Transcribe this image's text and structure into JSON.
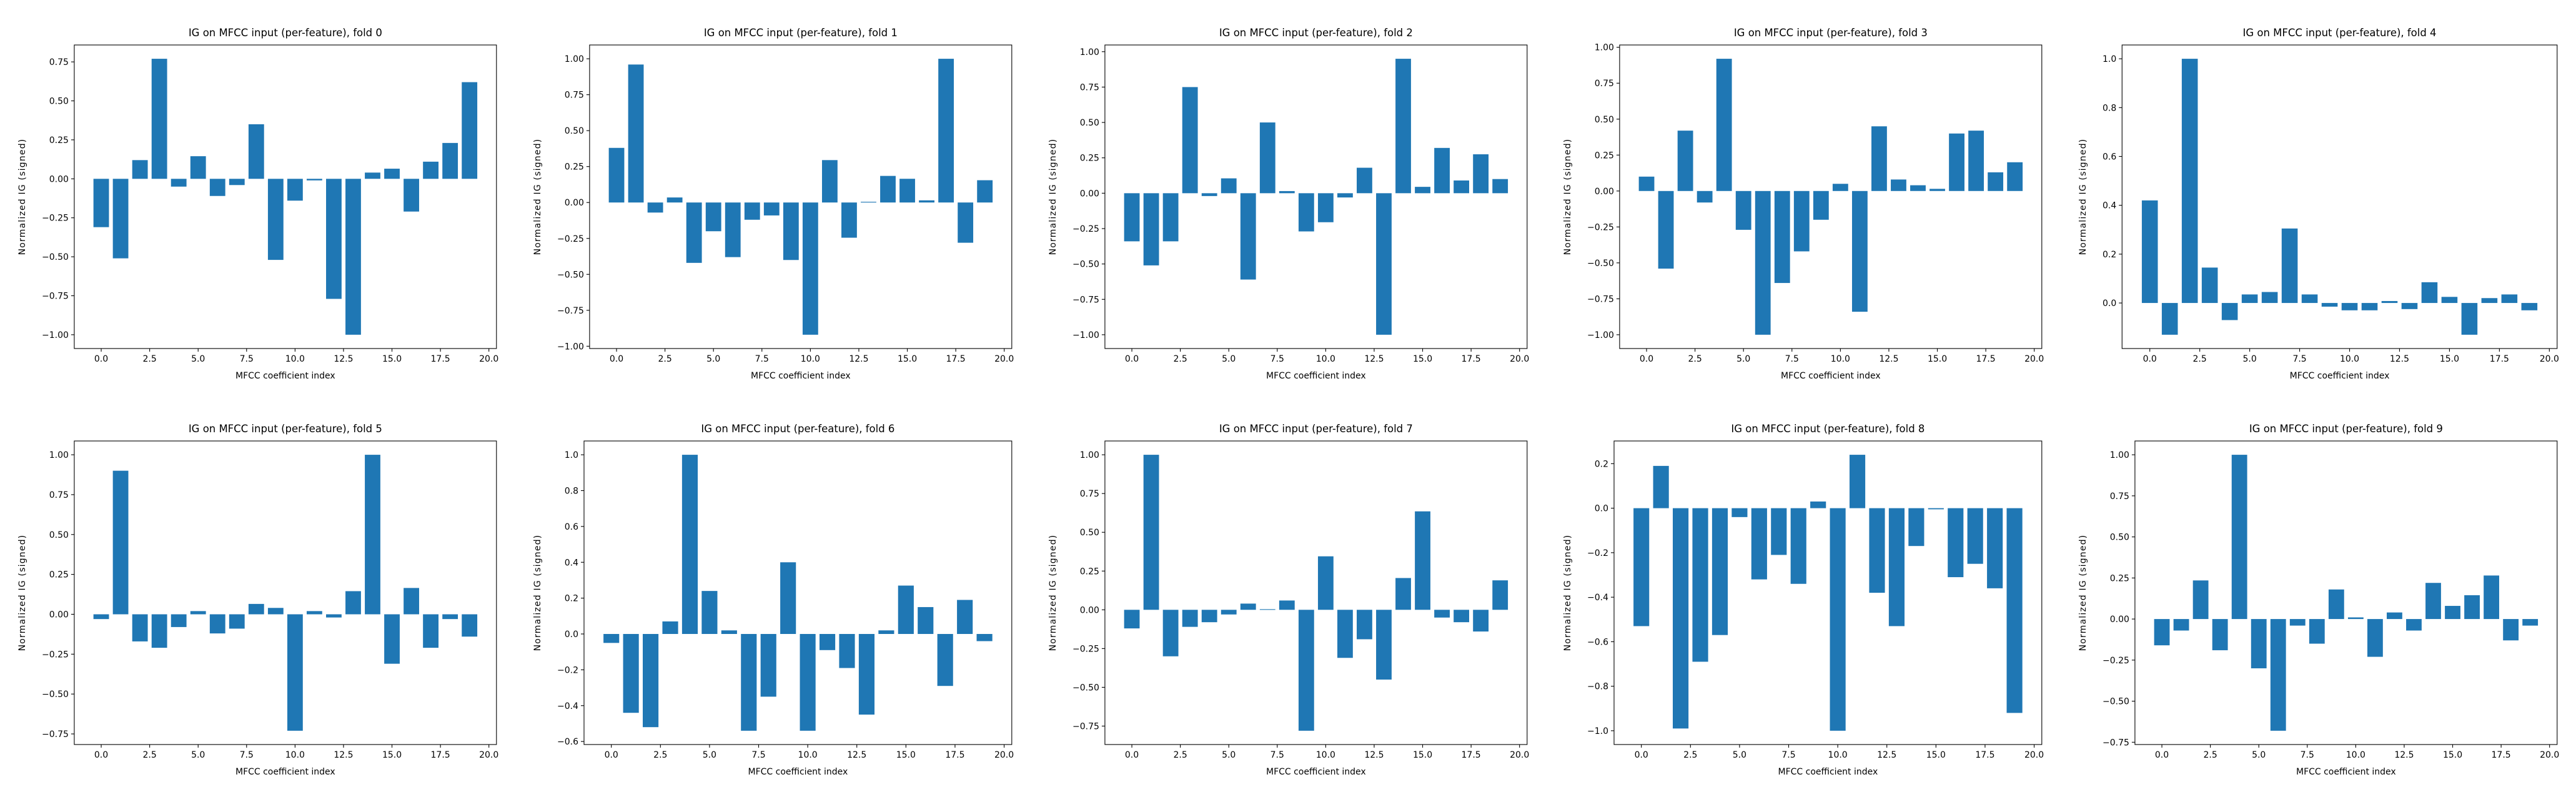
{
  "page": {
    "background": "#ffffff",
    "text_color": "#000000",
    "spine_color": "#000000"
  },
  "chart_data": [
    {
      "type": "bar",
      "title": "IG on MFCC input (per-feature), fold 0",
      "xlabel": "MFCC coefficient index",
      "ylabel": "Normalized IG (signed)",
      "bar_color": "#1f77b4",
      "grid": false,
      "x": [
        0,
        1,
        2,
        3,
        4,
        5,
        6,
        7,
        8,
        9,
        10,
        11,
        12,
        13,
        14,
        15,
        16,
        17,
        18,
        19
      ],
      "values": [
        -0.31,
        -0.51,
        0.12,
        0.77,
        -0.05,
        0.145,
        -0.11,
        -0.04,
        0.35,
        -0.52,
        -0.14,
        -0.01,
        -0.77,
        -1.0,
        0.04,
        0.065,
        -0.21,
        0.11,
        0.23,
        0.62
      ],
      "xlim": [
        -1.39,
        20.39
      ],
      "ylim": [
        -1.0885,
        0.8585
      ],
      "xticks": [
        0,
        2.5,
        5,
        7.5,
        10,
        12.5,
        15,
        17.5,
        20
      ],
      "xtick_labels": [
        "0.0",
        "2.5",
        "5.0",
        "7.5",
        "10.0",
        "12.5",
        "15.0",
        "17.5",
        "20.0"
      ],
      "yticks": [
        -1.0,
        -0.75,
        -0.5,
        -0.25,
        0.0,
        0.25,
        0.5,
        0.75
      ],
      "ytick_labels": [
        "−1.00",
        "−0.75",
        "−0.50",
        "−0.25",
        "0.00",
        "0.25",
        "0.50",
        "0.75"
      ]
    },
    {
      "type": "bar",
      "title": "IG on MFCC input (per-feature), fold 1",
      "xlabel": "MFCC coefficient index",
      "ylabel": "Normalized IG (signed)",
      "bar_color": "#1f77b4",
      "grid": false,
      "x": [
        0,
        1,
        2,
        3,
        4,
        5,
        6,
        7,
        8,
        9,
        10,
        11,
        12,
        13,
        14,
        15,
        16,
        17,
        18,
        19
      ],
      "values": [
        0.38,
        0.96,
        -0.07,
        0.035,
        -0.42,
        -0.2,
        -0.38,
        -0.12,
        -0.09,
        -0.4,
        -0.92,
        0.295,
        -0.245,
        0.005,
        0.185,
        0.165,
        0.015,
        1.0,
        -0.28,
        0.155
      ],
      "xlim": [
        -1.39,
        20.39
      ],
      "ylim": [
        -1.016,
        1.096
      ],
      "xticks": [
        0,
        2.5,
        5,
        7.5,
        10,
        12.5,
        15,
        17.5,
        20
      ],
      "xtick_labels": [
        "0.0",
        "2.5",
        "5.0",
        "7.5",
        "10.0",
        "12.5",
        "15.0",
        "17.5",
        "20.0"
      ],
      "yticks": [
        -1.0,
        -0.75,
        -0.5,
        -0.25,
        0.0,
        0.25,
        0.5,
        0.75,
        1.0
      ],
      "ytick_labels": [
        "−1.00",
        "−0.75",
        "−0.50",
        "−0.25",
        "0.00",
        "0.25",
        "0.50",
        "0.75",
        "1.00"
      ]
    },
    {
      "type": "bar",
      "title": "IG on MFCC input (per-feature), fold 2",
      "xlabel": "MFCC coefficient index",
      "ylabel": "Normalized IG (signed)",
      "bar_color": "#1f77b4",
      "grid": false,
      "x": [
        0,
        1,
        2,
        3,
        4,
        5,
        6,
        7,
        8,
        9,
        10,
        11,
        12,
        13,
        14,
        15,
        16,
        17,
        18,
        19
      ],
      "values": [
        -0.34,
        -0.51,
        -0.34,
        0.75,
        -0.02,
        0.105,
        -0.61,
        0.5,
        0.015,
        -0.27,
        -0.205,
        -0.03,
        0.18,
        -1.0,
        0.95,
        0.045,
        0.32,
        0.09,
        0.275,
        0.1
      ],
      "xlim": [
        -1.39,
        20.39
      ],
      "ylim": [
        -1.0975,
        1.0475
      ],
      "xticks": [
        0,
        2.5,
        5,
        7.5,
        10,
        12.5,
        15,
        17.5,
        20
      ],
      "xtick_labels": [
        "0.0",
        "2.5",
        "5.0",
        "7.5",
        "10.0",
        "12.5",
        "15.0",
        "17.5",
        "20.0"
      ],
      "yticks": [
        -1.0,
        -0.75,
        -0.5,
        -0.25,
        0.0,
        0.25,
        0.5,
        0.75,
        1.0
      ],
      "ytick_labels": [
        "−1.00",
        "−0.75",
        "−0.50",
        "−0.25",
        "0.00",
        "0.25",
        "0.50",
        "0.75",
        "1.00"
      ]
    },
    {
      "type": "bar",
      "title": "IG on MFCC input (per-feature), fold 3",
      "xlabel": "MFCC coefficient index",
      "ylabel": "Normalized IG (signed)",
      "bar_color": "#1f77b4",
      "grid": false,
      "x": [
        0,
        1,
        2,
        3,
        4,
        5,
        6,
        7,
        8,
        9,
        10,
        11,
        12,
        13,
        14,
        15,
        16,
        17,
        18,
        19
      ],
      "values": [
        0.1,
        -0.54,
        0.42,
        -0.08,
        0.92,
        -0.27,
        -1.0,
        -0.64,
        -0.42,
        -0.2,
        0.05,
        -0.84,
        0.45,
        0.08,
        0.04,
        0.015,
        0.4,
        0.42,
        0.13,
        0.2
      ],
      "xlim": [
        -1.39,
        20.39
      ],
      "ylim": [
        -1.096,
        1.016
      ],
      "xticks": [
        0,
        2.5,
        5,
        7.5,
        10,
        12.5,
        15,
        17.5,
        20
      ],
      "xtick_labels": [
        "0.0",
        "2.5",
        "5.0",
        "7.5",
        "10.0",
        "12.5",
        "15.0",
        "17.5",
        "20.0"
      ],
      "yticks": [
        -1.0,
        -0.75,
        -0.5,
        -0.25,
        0.0,
        0.25,
        0.5,
        0.75,
        1.0
      ],
      "ytick_labels": [
        "−1.00",
        "−0.75",
        "−0.50",
        "−0.25",
        "0.00",
        "0.25",
        "0.50",
        "0.75",
        "1.00"
      ]
    },
    {
      "type": "bar",
      "title": "IG on MFCC input (per-feature), fold 4",
      "xlabel": "MFCC coefficient index",
      "ylabel": "Normalized IG (signed)",
      "bar_color": "#1f77b4",
      "grid": false,
      "x": [
        0,
        1,
        2,
        3,
        4,
        5,
        6,
        7,
        8,
        9,
        10,
        11,
        12,
        13,
        14,
        15,
        16,
        17,
        18,
        19
      ],
      "values": [
        0.42,
        -0.13,
        1.0,
        0.145,
        -0.07,
        0.035,
        0.045,
        0.305,
        0.035,
        -0.015,
        -0.03,
        -0.03,
        0.008,
        -0.025,
        0.085,
        0.025,
        -0.13,
        0.02,
        0.035,
        -0.03
      ],
      "xlim": [
        -1.39,
        20.39
      ],
      "ylim": [
        -0.1865,
        1.0565
      ],
      "xticks": [
        0,
        2.5,
        5,
        7.5,
        10,
        12.5,
        15,
        17.5,
        20
      ],
      "xtick_labels": [
        "0.0",
        "2.5",
        "5.0",
        "7.5",
        "10.0",
        "12.5",
        "15.0",
        "17.5",
        "20.0"
      ],
      "yticks": [
        0.0,
        0.2,
        0.4,
        0.6,
        0.8,
        1.0
      ],
      "ytick_labels": [
        "0.0",
        "0.2",
        "0.4",
        "0.6",
        "0.8",
        "1.0"
      ]
    },
    {
      "type": "bar",
      "title": "IG on MFCC input (per-feature), fold 5",
      "xlabel": "MFCC coefficient index",
      "ylabel": "Normalized IG (signed)",
      "bar_color": "#1f77b4",
      "grid": false,
      "x": [
        0,
        1,
        2,
        3,
        4,
        5,
        6,
        7,
        8,
        9,
        10,
        11,
        12,
        13,
        14,
        15,
        16,
        17,
        18,
        19
      ],
      "values": [
        -0.03,
        0.9,
        -0.17,
        -0.21,
        -0.08,
        0.02,
        -0.12,
        -0.09,
        0.065,
        0.04,
        -0.73,
        0.02,
        -0.02,
        0.145,
        1.0,
        -0.31,
        0.165,
        -0.21,
        -0.03,
        -0.14
      ],
      "xlim": [
        -1.39,
        20.39
      ],
      "ylim": [
        -0.8165,
        1.0865
      ],
      "xticks": [
        0,
        2.5,
        5,
        7.5,
        10,
        12.5,
        15,
        17.5,
        20
      ],
      "xtick_labels": [
        "0.0",
        "2.5",
        "5.0",
        "7.5",
        "10.0",
        "12.5",
        "15.0",
        "17.5",
        "20.0"
      ],
      "yticks": [
        -0.75,
        -0.5,
        -0.25,
        0.0,
        0.25,
        0.5,
        0.75,
        1.0
      ],
      "ytick_labels": [
        "−0.75",
        "−0.50",
        "−0.25",
        "0.00",
        "0.25",
        "0.50",
        "0.75",
        "1.00"
      ]
    },
    {
      "type": "bar",
      "title": "IG on MFCC input (per-feature), fold 6",
      "xlabel": "MFCC coefficient index",
      "ylabel": "Normalized IG (signed)",
      "bar_color": "#1f77b4",
      "grid": false,
      "x": [
        0,
        1,
        2,
        3,
        4,
        5,
        6,
        7,
        8,
        9,
        10,
        11,
        12,
        13,
        14,
        15,
        16,
        17,
        18,
        19
      ],
      "values": [
        -0.05,
        -0.44,
        -0.52,
        0.07,
        1.0,
        0.24,
        0.02,
        -0.54,
        -0.35,
        0.4,
        -0.54,
        -0.09,
        -0.19,
        -0.45,
        0.02,
        0.27,
        0.15,
        -0.29,
        0.19,
        -0.04
      ],
      "xlim": [
        -1.39,
        20.39
      ],
      "ylim": [
        -0.617,
        1.077
      ],
      "xticks": [
        0,
        2.5,
        5,
        7.5,
        10,
        12.5,
        15,
        17.5,
        20
      ],
      "xtick_labels": [
        "0.0",
        "2.5",
        "5.0",
        "7.5",
        "10.0",
        "12.5",
        "15.0",
        "17.5",
        "20.0"
      ],
      "yticks": [
        -0.6,
        -0.4,
        -0.2,
        0.0,
        0.2,
        0.4,
        0.6,
        0.8,
        1.0
      ],
      "ytick_labels": [
        "−0.6",
        "−0.4",
        "−0.2",
        "0.0",
        "0.2",
        "0.4",
        "0.6",
        "0.8",
        "1.0"
      ]
    },
    {
      "type": "bar",
      "title": "IG on MFCC input (per-feature), fold 7",
      "xlabel": "MFCC coefficient index",
      "ylabel": "Normalized IG (signed)",
      "bar_color": "#1f77b4",
      "grid": false,
      "x": [
        0,
        1,
        2,
        3,
        4,
        5,
        6,
        7,
        8,
        9,
        10,
        11,
        12,
        13,
        14,
        15,
        16,
        17,
        18,
        19
      ],
      "values": [
        -0.12,
        1.0,
        -0.3,
        -0.11,
        -0.08,
        -0.03,
        0.04,
        0.004,
        0.06,
        -0.78,
        0.345,
        -0.31,
        -0.19,
        -0.45,
        0.205,
        0.635,
        -0.05,
        -0.08,
        -0.14,
        0.19
      ],
      "xlim": [
        -1.39,
        20.39
      ],
      "ylim": [
        -0.869,
        1.089
      ],
      "xticks": [
        0,
        2.5,
        5,
        7.5,
        10,
        12.5,
        15,
        17.5,
        20
      ],
      "xtick_labels": [
        "0.0",
        "2.5",
        "5.0",
        "7.5",
        "10.0",
        "12.5",
        "15.0",
        "17.5",
        "20.0"
      ],
      "yticks": [
        -0.75,
        -0.5,
        -0.25,
        0.0,
        0.25,
        0.5,
        0.75,
        1.0
      ],
      "ytick_labels": [
        "−0.75",
        "−0.50",
        "−0.25",
        "0.00",
        "0.25",
        "0.50",
        "0.75",
        "1.00"
      ]
    },
    {
      "type": "bar",
      "title": "IG on MFCC input (per-feature), fold 8",
      "xlabel": "MFCC coefficient index",
      "ylabel": "Normalized IG (signed)",
      "bar_color": "#1f77b4",
      "grid": false,
      "x": [
        0,
        1,
        2,
        3,
        4,
        5,
        6,
        7,
        8,
        9,
        10,
        11,
        12,
        13,
        14,
        15,
        16,
        17,
        18,
        19
      ],
      "values": [
        -0.53,
        0.19,
        -0.99,
        -0.69,
        -0.57,
        -0.04,
        -0.32,
        -0.21,
        -0.34,
        0.03,
        -1.0,
        0.24,
        -0.38,
        -0.53,
        -0.17,
        -0.005,
        -0.31,
        -0.25,
        -0.36,
        -0.92
      ],
      "xlim": [
        -1.39,
        20.39
      ],
      "ylim": [
        -1.062,
        0.302
      ],
      "xticks": [
        0,
        2.5,
        5,
        7.5,
        10,
        12.5,
        15,
        17.5,
        20
      ],
      "xtick_labels": [
        "0.0",
        "2.5",
        "5.0",
        "7.5",
        "10.0",
        "12.5",
        "15.0",
        "17.5",
        "20.0"
      ],
      "yticks": [
        -1.0,
        -0.8,
        -0.6,
        -0.4,
        -0.2,
        0.0,
        0.2
      ],
      "ytick_labels": [
        "−1.0",
        "−0.8",
        "−0.6",
        "−0.4",
        "−0.2",
        "0.0",
        "0.2"
      ]
    },
    {
      "type": "bar",
      "title": "IG on MFCC input (per-feature), fold 9",
      "xlabel": "MFCC coefficient index",
      "ylabel": "Normalized IG (signed)",
      "bar_color": "#1f77b4",
      "grid": false,
      "x": [
        0,
        1,
        2,
        3,
        4,
        5,
        6,
        7,
        8,
        9,
        10,
        11,
        12,
        13,
        14,
        15,
        16,
        17,
        18,
        19
      ],
      "values": [
        -0.16,
        -0.07,
        0.235,
        -0.19,
        1.0,
        -0.3,
        -0.68,
        -0.04,
        -0.15,
        0.18,
        0.01,
        -0.23,
        0.04,
        -0.07,
        0.22,
        0.08,
        0.145,
        0.265,
        -0.13,
        -0.04
      ],
      "xlim": [
        -1.39,
        20.39
      ],
      "ylim": [
        -0.764,
        1.084
      ],
      "xticks": [
        0,
        2.5,
        5,
        7.5,
        10,
        12.5,
        15,
        17.5,
        20
      ],
      "xtick_labels": [
        "0.0",
        "2.5",
        "5.0",
        "7.5",
        "10.0",
        "12.5",
        "15.0",
        "17.5",
        "20.0"
      ],
      "yticks": [
        -0.75,
        -0.5,
        -0.25,
        0.0,
        0.25,
        0.5,
        0.75,
        1.0
      ],
      "ytick_labels": [
        "−0.75",
        "−0.50",
        "−0.25",
        "0.00",
        "0.25",
        "0.50",
        "0.75",
        "1.00"
      ]
    }
  ]
}
